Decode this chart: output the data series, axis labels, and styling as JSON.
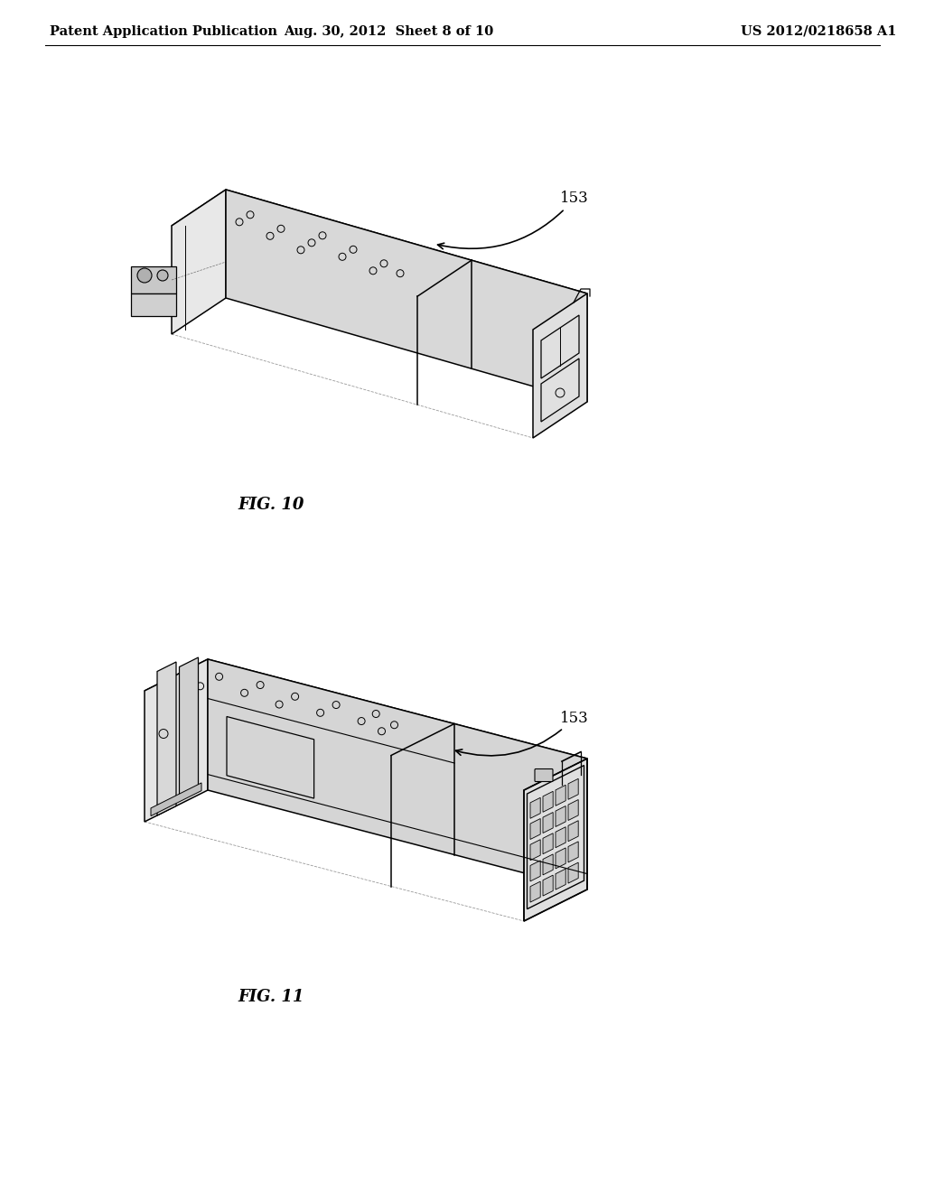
{
  "background_color": "#ffffff",
  "header_left": "Patent Application Publication",
  "header_center": "Aug. 30, 2012  Sheet 8 of 10",
  "header_right": "US 2012/0218658 A1",
  "line_color": "#000000",
  "fig1_label": "FIG. 10",
  "fig2_label": "FIG. 11",
  "ref_num": "153",
  "header_fontsize": 10.5,
  "fig_label_fontsize": 13,
  "ref_fontsize": 12
}
